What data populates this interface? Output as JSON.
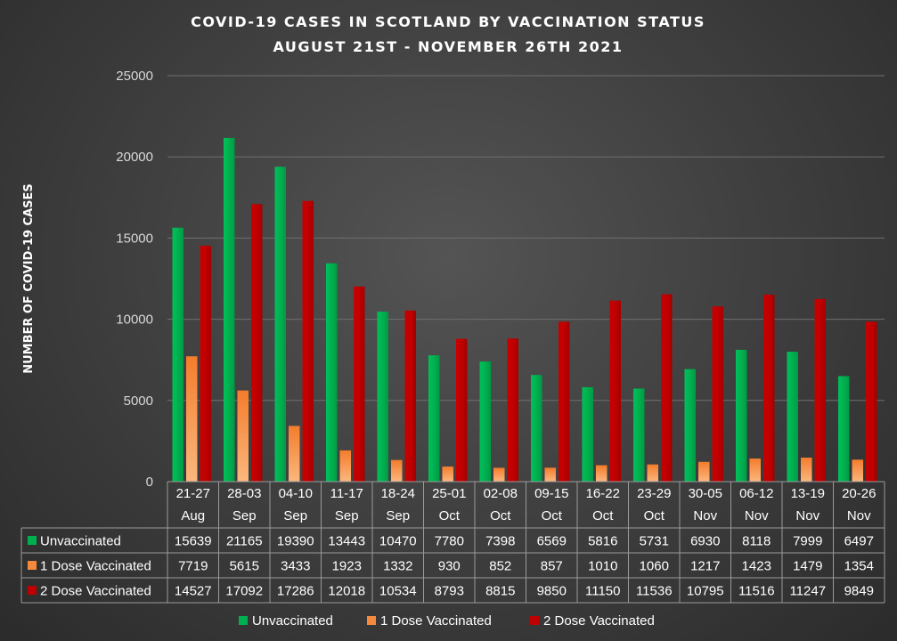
{
  "chart_data": {
    "type": "bar",
    "title": [
      "COVID-19 CASES IN SCOTLAND BY VACCINATION STATUS",
      "AUGUST 21ST - NOVEMBER 26TH 2021"
    ],
    "ylabel": "NUMBER OF COVID-19 CASES",
    "xlabel": "",
    "ylim": [
      0,
      25000
    ],
    "yticks": [
      0,
      5000,
      10000,
      15000,
      20000,
      25000
    ],
    "grid": true,
    "legend_position": "bottom",
    "categories": [
      [
        "21-27",
        "Aug"
      ],
      [
        "28-03",
        "Sep"
      ],
      [
        "04-10",
        "Sep"
      ],
      [
        "11-17",
        "Sep"
      ],
      [
        "18-24",
        "Sep"
      ],
      [
        "25-01",
        "Oct"
      ],
      [
        "02-08",
        "Oct"
      ],
      [
        "09-15",
        "Oct"
      ],
      [
        "16-22",
        "Oct"
      ],
      [
        "23-29",
        "Oct"
      ],
      [
        "30-05",
        "Nov"
      ],
      [
        "06-12",
        "Nov"
      ],
      [
        "13-19",
        "Nov"
      ],
      [
        "20-26",
        "Nov"
      ]
    ],
    "series": [
      {
        "name": "Unvaccinated",
        "color": "#00b050",
        "values": [
          15639,
          21165,
          19390,
          13443,
          10470,
          7780,
          7398,
          6569,
          5816,
          5731,
          6930,
          8118,
          7999,
          6497
        ]
      },
      {
        "name": "1 Dose Vaccinated",
        "color": "#f58a3c",
        "values": [
          7719,
          5615,
          3433,
          1923,
          1332,
          930,
          852,
          857,
          1010,
          1060,
          1217,
          1423,
          1479,
          1354
        ]
      },
      {
        "name": "2 Dose Vaccinated",
        "color": "#c00000",
        "values": [
          14527,
          17092,
          17286,
          12018,
          10534,
          8793,
          8815,
          9850,
          11150,
          11536,
          10795,
          11516,
          11247,
          9849
        ]
      }
    ]
  }
}
